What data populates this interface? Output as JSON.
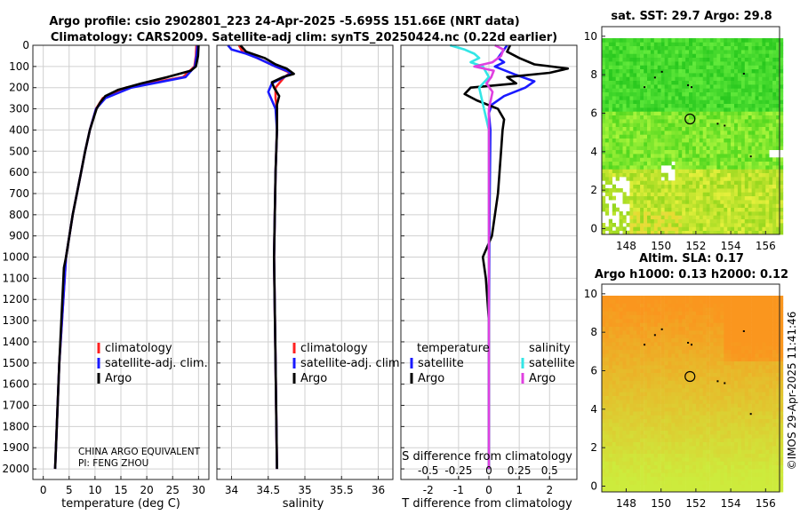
{
  "title_line1": "Argo profile: csio 2902801_223 24-Apr-2025 -5.695S 151.66E (NRT data)",
  "title_line2": "Climatology: CARS2009. Satellite-adj clim: synTS_20250424.nc (0.22d earlier)",
  "credit_line1": "CHINA ARGO EQUIVALENT",
  "credit_line2": "PI: FENG ZHOU",
  "stamp": "©IMOS 29-Apr-2025 11:41:46",
  "colors": {
    "climatology": "#ff2020",
    "satellite": "#1a1aff",
    "argo": "#000000",
    "sat_salinity": "#33e6e6",
    "argo_salinity": "#e040e0"
  },
  "chart_data": [
    {
      "type": "line",
      "panel": "temperature",
      "xlabel": "temperature (deg C)",
      "ylabel": "",
      "xlim": [
        -2,
        32
      ],
      "ylim": [
        2050,
        0
      ],
      "xticks": [
        0,
        5,
        10,
        15,
        20,
        25,
        30
      ],
      "yticks": [
        0,
        100,
        200,
        300,
        400,
        500,
        600,
        700,
        800,
        900,
        1000,
        1100,
        1200,
        1300,
        1400,
        1500,
        1600,
        1700,
        1800,
        1900,
        2000
      ],
      "legend": [
        "climatology",
        "satellite-adj. clim.",
        "Argo"
      ],
      "series": [
        {
          "name": "climatology",
          "color": "#ff2020",
          "depth": [
            0,
            50,
            100,
            150,
            200,
            250,
            300,
            400,
            500,
            600,
            700,
            800,
            1000,
            1500,
            2000
          ],
          "values": [
            29.6,
            29.5,
            29.2,
            27,
            16,
            11.5,
            10.2,
            9,
            8.1,
            7.3,
            6.5,
            5.7,
            4.4,
            3.1,
            2.3
          ]
        },
        {
          "name": "satellite-adj. clim.",
          "color": "#1a1aff",
          "depth": [
            0,
            50,
            100,
            150,
            200,
            250,
            300,
            400,
            500,
            600,
            700,
            800,
            1000,
            1500,
            2000
          ],
          "values": [
            29.8,
            29.6,
            29.3,
            27.5,
            17,
            12,
            10.2,
            9,
            8.1,
            7.3,
            6.5,
            5.7,
            4.4,
            3.1,
            2.3
          ]
        },
        {
          "name": "Argo",
          "color": "#000000",
          "depth": [
            0,
            50,
            100,
            120,
            150,
            180,
            210,
            240,
            270,
            300,
            400,
            500,
            600,
            700,
            800,
            1000,
            1050,
            1500,
            2000
          ],
          "values": [
            30,
            29.9,
            29.5,
            28.5,
            24,
            19,
            14.5,
            12,
            11,
            10.3,
            9,
            8.1,
            7.3,
            6.5,
            5.7,
            4.4,
            4,
            3.1,
            2.3
          ]
        }
      ]
    },
    {
      "type": "line",
      "panel": "salinity",
      "xlabel": "salinity",
      "xlim": [
        33.8,
        36.2
      ],
      "ylim": [
        2050,
        0
      ],
      "xticks": [
        34,
        34.5,
        35,
        35.5,
        36
      ],
      "legend": [
        "climatology",
        "satellite-adj. clim.",
        "Argo"
      ],
      "series": [
        {
          "name": "climatology",
          "color": "#ff2020",
          "depth": [
            0,
            30,
            60,
            100,
            130,
            150,
            200,
            250,
            300,
            400,
            600,
            1000,
            1500,
            2000
          ],
          "values": [
            34.1,
            34.15,
            34.35,
            34.6,
            34.8,
            34.72,
            34.6,
            34.6,
            34.62,
            34.62,
            34.6,
            34.58,
            34.6,
            34.62
          ]
        },
        {
          "name": "satellite-adj. clim.",
          "color": "#1a1aff",
          "depth": [
            0,
            20,
            40,
            60,
            100,
            130,
            150,
            180,
            220,
            260,
            300,
            400,
            600,
            1000,
            1500,
            2000
          ],
          "values": [
            33.95,
            34.0,
            34.2,
            34.35,
            34.6,
            34.82,
            34.72,
            34.55,
            34.5,
            34.55,
            34.6,
            34.62,
            34.6,
            34.58,
            34.6,
            34.62
          ]
        },
        {
          "name": "Argo",
          "color": "#000000",
          "depth": [
            0,
            30,
            60,
            90,
            110,
            135,
            150,
            175,
            200,
            240,
            280,
            300,
            400,
            600,
            1000,
            1500,
            2000
          ],
          "values": [
            34.12,
            34.2,
            34.45,
            34.6,
            34.75,
            34.85,
            34.7,
            34.55,
            34.58,
            34.65,
            34.62,
            34.62,
            34.62,
            34.6,
            34.58,
            34.6,
            34.62
          ]
        }
      ]
    },
    {
      "type": "line",
      "panel": "difference",
      "xlabel": "T difference from climatology",
      "title_bottom": "S difference from climatology",
      "xlim": [
        -2.9,
        2.9
      ],
      "ylim": [
        2050,
        0
      ],
      "xticks": [
        -2,
        -1,
        0,
        1,
        2
      ],
      "s_ticks": [
        "-0.5",
        "-0.25",
        "0",
        "0.25",
        "0.5"
      ],
      "legend_titles": [
        "temperature",
        "salinity"
      ],
      "legend_temperature": [
        "satellite",
        "Argo"
      ],
      "legend_salinity": [
        "satellite",
        "Argo"
      ],
      "series": [
        {
          "name": "T satellite",
          "color": "#1a1aff",
          "depth": [
            0,
            20,
            40,
            60,
            80,
            100,
            140,
            170,
            200,
            240,
            280,
            320,
            400,
            800,
            1500,
            2000
          ],
          "values": [
            0.6,
            0.5,
            0.4,
            0.3,
            0.5,
            0.2,
            0.9,
            1.5,
            1.2,
            0.5,
            0.1,
            0.0,
            0.05,
            0.02,
            0.0,
            0.0
          ]
        },
        {
          "name": "T Argo",
          "color": "#000000",
          "depth": [
            0,
            30,
            60,
            90,
            110,
            130,
            150,
            180,
            200,
            230,
            260,
            300,
            350,
            400,
            500,
            700,
            900,
            1000,
            1100,
            1300,
            2000
          ],
          "values": [
            0.7,
            0.6,
            1.0,
            1.5,
            2.6,
            2.0,
            0.6,
            0.9,
            -0.6,
            -0.8,
            -0.4,
            0.3,
            0.5,
            0.45,
            0.4,
            0.3,
            0.1,
            -0.2,
            -0.1,
            0.0,
            0.0
          ]
        },
        {
          "name": "S satellite",
          "color": "#33e6e6",
          "depth": [
            0,
            20,
            40,
            60,
            80,
            100,
            150,
            200,
            300,
            400,
            1000,
            2000
          ],
          "values": [
            -0.32,
            -0.2,
            -0.12,
            -0.08,
            -0.15,
            -0.05,
            0.0,
            -0.08,
            -0.04,
            0.0,
            0.0,
            0.0
          ]
        },
        {
          "name": "S Argo",
          "color": "#e040e0",
          "depth": [
            0,
            20,
            50,
            80,
            100,
            120,
            150,
            180,
            220,
            300,
            400,
            1000,
            2000
          ],
          "values": [
            0.05,
            0.12,
            0.1,
            0.03,
            -0.12,
            0.04,
            0.02,
            -0.02,
            0.03,
            0.0,
            0.0,
            0.0,
            0.0
          ]
        }
      ]
    },
    {
      "type": "heatmap",
      "panel": "sat_sst",
      "title": "sat. SST: 29.7 Argo: 29.8",
      "xlim": [
        146.6,
        156.8
      ],
      "ylim": [
        -0.3,
        10.5
      ],
      "xticks": [
        148,
        150,
        152,
        154,
        156
      ],
      "yticks": [
        0,
        2,
        4,
        6,
        8,
        10
      ],
      "marker": {
        "lon": 151.66,
        "lat": 5.7
      }
    },
    {
      "type": "heatmap",
      "panel": "sla",
      "title": "Altim. SLA: 0.17",
      "subtitle": "Argo h1000: 0.13 h2000: 0.12",
      "xlim": [
        146.6,
        156.8
      ],
      "ylim": [
        -0.3,
        10.5
      ],
      "xticks": [
        148,
        150,
        152,
        154,
        156
      ],
      "yticks": [
        0,
        2,
        4,
        6,
        8,
        10
      ],
      "marker": {
        "lon": 151.66,
        "lat": 5.7
      }
    }
  ]
}
